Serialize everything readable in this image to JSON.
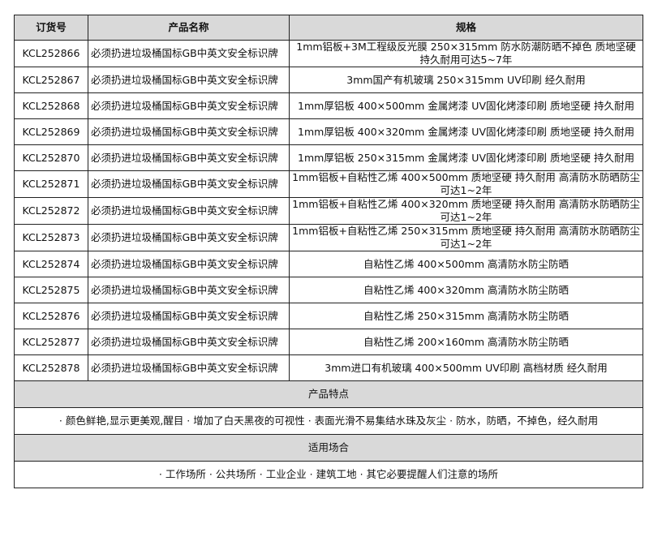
{
  "headers": [
    "订货号",
    "产品名称",
    "规格"
  ],
  "rows": [
    {
      "code": "KCL252866",
      "name": "必须扔进垃圾桶国标GB中英文安全标识牌",
      "spec": "1mm铝板+3M工程级反光膜 250×315mm 防水防潮防晒不掉色 质地坚硬 持久耐用可达5~7年"
    },
    {
      "code": "KCL252867",
      "name": "必须扔进垃圾桶国标GB中英文安全标识牌",
      "spec": "3mm国产有机玻璃 250×315mm UV印刷 经久耐用"
    },
    {
      "code": "KCL252868",
      "name": "必须扔进垃圾桶国标GB中英文安全标识牌",
      "spec": "1mm厚铝板 400×500mm 金属烤漆 UV固化烤漆印刷 质地坚硬 持久耐用"
    },
    {
      "code": "KCL252869",
      "name": "必须扔进垃圾桶国标GB中英文安全标识牌",
      "spec": "1mm厚铝板 400×320mm 金属烤漆 UV固化烤漆印刷 质地坚硬 持久耐用"
    },
    {
      "code": "KCL252870",
      "name": "必须扔进垃圾桶国标GB中英文安全标识牌",
      "spec": "1mm厚铝板 250×315mm 金属烤漆 UV固化烤漆印刷 质地坚硬 持久耐用"
    },
    {
      "code": "KCL252871",
      "name": "必须扔进垃圾桶国标GB中英文安全标识牌",
      "spec": "1mm铝板+自粘性乙烯 400×500mm 质地坚硬 持久耐用 高清防水防晒防尘可达1~2年"
    },
    {
      "code": "KCL252872",
      "name": "必须扔进垃圾桶国标GB中英文安全标识牌",
      "spec": "1mm铝板+自粘性乙烯 400×320mm 质地坚硬 持久耐用 高清防水防晒防尘可达1~2年"
    },
    {
      "code": "KCL252873",
      "name": "必须扔进垃圾桶国标GB中英文安全标识牌",
      "spec": "1mm铝板+自粘性乙烯 250×315mm 质地坚硬 持久耐用 高清防水防晒防尘可达1~2年"
    },
    {
      "code": "KCL252874",
      "name": "必须扔进垃圾桶国标GB中英文安全标识牌",
      "spec": "自粘性乙烯 400×500mm 高清防水防尘防晒"
    },
    {
      "code": "KCL252875",
      "name": "必须扔进垃圾桶国标GB中英文安全标识牌",
      "spec": "自粘性乙烯 400×320mm 高清防水防尘防晒"
    },
    {
      "code": "KCL252876",
      "name": "必须扔进垃圾桶国标GB中英文安全标识牌",
      "spec": "自粘性乙烯 250×315mm 高清防水防尘防晒"
    },
    {
      "code": "KCL252877",
      "name": "必须扔进垃圾桶国标GB中英文安全标识牌",
      "spec": "自粘性乙烯 200×160mm 高清防水防尘防晒"
    },
    {
      "code": "KCL252878",
      "name": "必须扔进垃圾桶国标GB中英文安全标识牌",
      "spec": "3mm进口有机玻璃 400×500mm UV印刷 高档材质 经久耐用"
    }
  ],
  "features": {
    "title": "产品特点",
    "text": "· 颜色鲜艳,显示更美观,醒目 · 增加了白天黑夜的可视性 · 表面光滑不易集结水珠及灰尘 · 防水，防晒，不掉色，经久耐用"
  },
  "usage": {
    "title": "适用场合",
    "text": "· 工作场所 · 公共场所 · 工业企业 · 建筑工地 · 其它必要提醒人们注意的场所"
  }
}
